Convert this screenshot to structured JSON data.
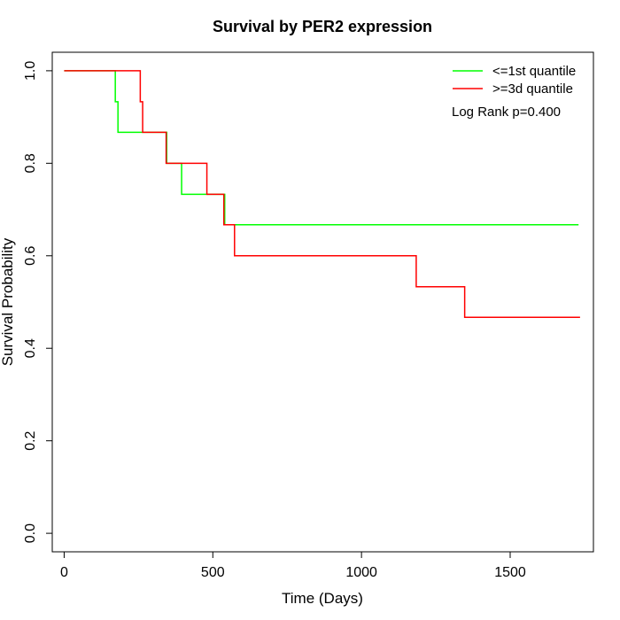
{
  "chart_data": {
    "type": "line",
    "title": "Survival by PER2 expression",
    "xlabel": "Time (Days)",
    "ylabel": "Survival Probability",
    "xlim": [
      -40,
      1780
    ],
    "ylim": [
      -0.04,
      1.04
    ],
    "x_ticks": [
      0,
      500,
      1000,
      1500
    ],
    "y_ticks": [
      0.0,
      0.2,
      0.4,
      0.6,
      0.8,
      1.0
    ],
    "y_tick_labels": [
      "0.0",
      "0.2",
      "0.4",
      "0.6",
      "0.8",
      "1.0"
    ],
    "grid": false,
    "legend_position": "top-right",
    "annotation": "Log Rank p=0.400",
    "series": [
      {
        "name": "<=1st quantile",
        "color": "#00ff00",
        "step": true,
        "x": [
          0,
          172,
          181,
          345,
          395,
          540,
          545,
          1730
        ],
        "y": [
          1.0,
          0.933,
          0.867,
          0.8,
          0.733,
          0.667,
          0.667,
          0.667
        ]
      },
      {
        "name": ">=3d quantile",
        "color": "#ff0000",
        "step": true,
        "x": [
          0,
          256,
          264,
          343,
          480,
          537,
          573,
          1184,
          1347,
          1735
        ],
        "y": [
          1.0,
          0.933,
          0.867,
          0.8,
          0.733,
          0.667,
          0.6,
          0.533,
          0.467,
          0.467
        ]
      }
    ]
  }
}
